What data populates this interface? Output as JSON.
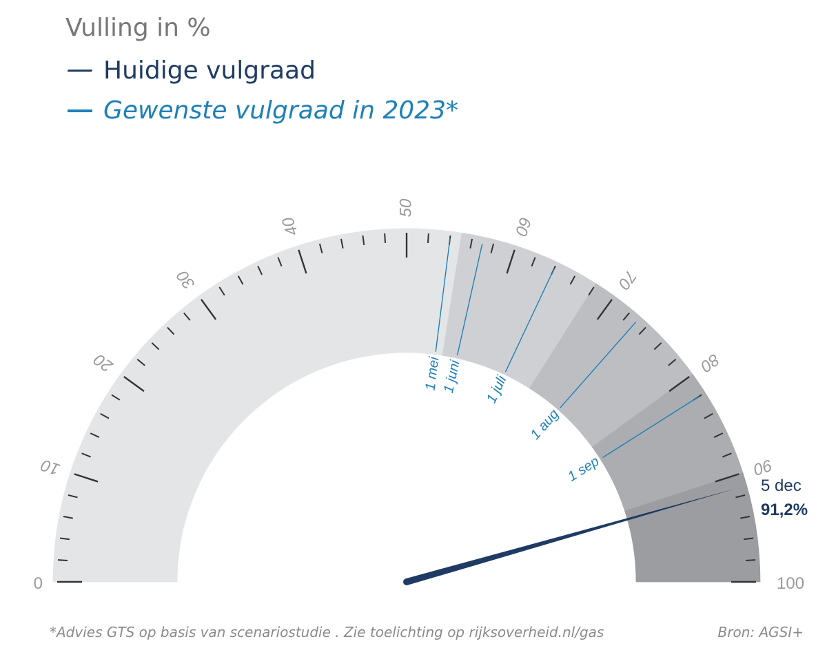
{
  "title": "Vulling in %",
  "legend": {
    "current": "Huidige vulgraad",
    "target": "Gewenste vulgraad in 2023*"
  },
  "colors": {
    "needle": "#1f3b63",
    "target_line": "#1e80b8",
    "bands": [
      "#e4e5e7",
      "#cfd0d3",
      "#bdbec1",
      "#acadb0",
      "#9c9da0"
    ],
    "ticks": "#333333",
    "tick_labels": "#9a9a9a"
  },
  "chart_data": {
    "type": "gauge",
    "title": "Vulling in %",
    "min": 0,
    "max": 100,
    "major_tick_step": 10,
    "minor_tick_step": 2,
    "tick_labels": [
      "0",
      "10",
      "20",
      "30",
      "40",
      "50",
      "60",
      "70",
      "80",
      "90",
      "100"
    ],
    "bands": [
      {
        "from": 0,
        "to": 55
      },
      {
        "from": 55,
        "to": 68
      },
      {
        "from": 68,
        "to": 80
      },
      {
        "from": 80,
        "to": 90
      },
      {
        "from": 90,
        "to": 100
      }
    ],
    "targets": [
      {
        "label": "1 mei",
        "value": 54
      },
      {
        "label": "1 juni",
        "value": 57
      },
      {
        "label": "1 juli",
        "value": 64
      },
      {
        "label": "1 aug",
        "value": 73
      },
      {
        "label": "1 sep",
        "value": 82
      }
    ],
    "current": {
      "date": "5 dec",
      "value": 91.2,
      "value_label": "91,2%"
    }
  },
  "footnote": "*Advies GTS op basis van scenariostudie . Zie toelichting op rijksoverheid.nl/gas",
  "source": "Bron: AGSI+"
}
